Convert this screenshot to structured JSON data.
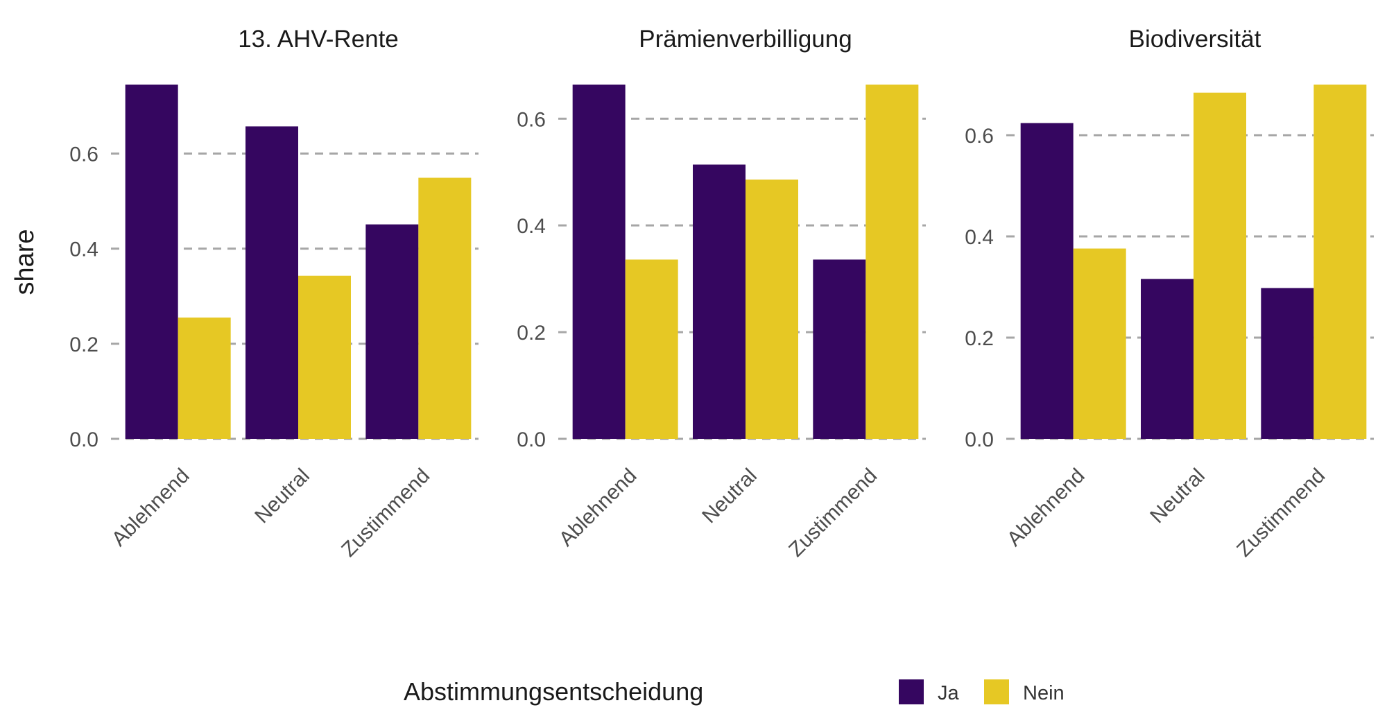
{
  "chart_data": {
    "type": "bar",
    "ylabel": "share",
    "legend": {
      "title": "Abstimmungsentscheidung",
      "position": "bottom",
      "entries": [
        {
          "name": "Ja",
          "color": "#350660"
        },
        {
          "name": "Nein",
          "color": "#E6C824"
        }
      ]
    },
    "grid": "horizontal dashed",
    "panels": [
      {
        "title": "13. AHV-Rente",
        "categories": [
          "Ablehnend",
          "Neutral",
          "Zustimmend"
        ],
        "ylim": [
          0,
          0.745
        ],
        "yticks": [
          {
            "value": 0,
            "label": "0.0"
          },
          {
            "value": 0.2,
            "label": "0.2"
          },
          {
            "value": 0.4,
            "label": "0.4"
          },
          {
            "value": 0.6,
            "label": "0.6"
          }
        ],
        "series": [
          {
            "name": "Ja",
            "values": [
              0.745,
              0.657,
              0.451
            ]
          },
          {
            "name": "Nein",
            "values": [
              0.255,
              0.343,
              0.549
            ]
          }
        ]
      },
      {
        "title": "Prämienverbilligung",
        "categories": [
          "Ablehnend",
          "Neutral",
          "Zustimmend"
        ],
        "ylim": [
          0,
          0.664
        ],
        "yticks": [
          {
            "value": 0,
            "label": "0.0"
          },
          {
            "value": 0.2,
            "label": "0.2"
          },
          {
            "value": 0.4,
            "label": "0.4"
          },
          {
            "value": 0.6,
            "label": "0.6"
          }
        ],
        "series": [
          {
            "name": "Ja",
            "values": [
              0.664,
              0.514,
              0.336
            ]
          },
          {
            "name": "Nein",
            "values": [
              0.336,
              0.486,
              0.664
            ]
          }
        ]
      },
      {
        "title": "Biodiversität",
        "categories": [
          "Ablehnend",
          "Neutral",
          "Zustimmend"
        ],
        "ylim": [
          0,
          0.7
        ],
        "yticks": [
          {
            "value": 0,
            "label": "0.0"
          },
          {
            "value": 0.2,
            "label": "0.2"
          },
          {
            "value": 0.4,
            "label": "0.4"
          },
          {
            "value": 0.6,
            "label": "0.6"
          }
        ],
        "series": [
          {
            "name": "Ja",
            "values": [
              0.624,
              0.316,
              0.298
            ]
          },
          {
            "name": "Nein",
            "values": [
              0.376,
              0.684,
              0.7
            ]
          }
        ]
      }
    ]
  }
}
